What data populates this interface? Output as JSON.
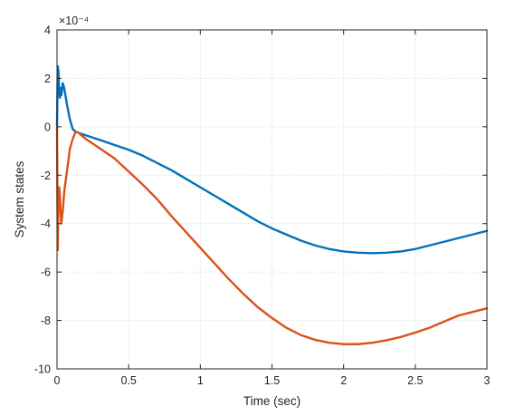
{
  "chart_data": {
    "type": "line",
    "title": "",
    "xlabel": "Time (sec)",
    "ylabel": "System states",
    "xlim": [
      0,
      3
    ],
    "ylim": [
      -10,
      4
    ],
    "y_exponent_label": "×10⁻⁴",
    "xticks": [
      0,
      0.5,
      1,
      1.5,
      2,
      2.5,
      3
    ],
    "xtick_labels": [
      "0",
      "0.5",
      "1",
      "1.5",
      "2",
      "2.5",
      "3"
    ],
    "yticks": [
      -10,
      -8,
      -6,
      -4,
      -2,
      0,
      2,
      4
    ],
    "ytick_labels": [
      "-10",
      "-8",
      "-6",
      "-4",
      "-2",
      "0",
      "2",
      "4"
    ],
    "grid": true,
    "legend": "none",
    "series": [
      {
        "color": "#0072BD",
        "x": [
          0,
          0.005,
          0.01,
          0.015,
          0.02,
          0.025,
          0.03,
          0.04,
          0.05,
          0.07,
          0.09,
          0.11,
          0.13,
          0.15,
          0.2,
          0.3,
          0.4,
          0.5,
          0.6,
          0.7,
          0.8,
          0.9,
          1.0,
          1.1,
          1.2,
          1.3,
          1.4,
          1.5,
          1.6,
          1.7,
          1.8,
          1.9,
          2.0,
          2.1,
          2.2,
          2.3,
          2.4,
          2.5,
          2.6,
          2.7,
          2.8,
          2.9,
          3.0
        ],
        "y": [
          0,
          2.5,
          2.3,
          1.5,
          1.2,
          1.6,
          1.3,
          1.8,
          1.6,
          0.9,
          0.3,
          -0.1,
          -0.2,
          -0.25,
          -0.35,
          -0.55,
          -0.75,
          -0.95,
          -1.2,
          -1.5,
          -1.8,
          -2.15,
          -2.5,
          -2.85,
          -3.2,
          -3.55,
          -3.9,
          -4.2,
          -4.45,
          -4.7,
          -4.9,
          -5.05,
          -5.15,
          -5.2,
          -5.22,
          -5.2,
          -5.15,
          -5.05,
          -4.9,
          -4.75,
          -4.6,
          -4.45,
          -4.3
        ]
      },
      {
        "color": "#D95319",
        "x": [
          0,
          0.005,
          0.01,
          0.015,
          0.02,
          0.025,
          0.03,
          0.04,
          0.05,
          0.07,
          0.09,
          0.11,
          0.13,
          0.15,
          0.2,
          0.3,
          0.4,
          0.5,
          0.6,
          0.7,
          0.8,
          0.9,
          1.0,
          1.1,
          1.2,
          1.3,
          1.4,
          1.5,
          1.6,
          1.7,
          1.8,
          1.9,
          2.0,
          2.1,
          2.2,
          2.3,
          2.4,
          2.5,
          2.6,
          2.7,
          2.8,
          2.9,
          3.0
        ],
        "y": [
          0,
          -5.1,
          -3.2,
          -2.5,
          -2.8,
          -3.5,
          -4.0,
          -3.5,
          -2.7,
          -1.8,
          -0.9,
          -0.5,
          -0.2,
          -0.25,
          -0.5,
          -0.9,
          -1.3,
          -1.85,
          -2.4,
          -3.0,
          -3.7,
          -4.35,
          -5.0,
          -5.65,
          -6.3,
          -6.9,
          -7.45,
          -7.9,
          -8.3,
          -8.6,
          -8.8,
          -8.92,
          -8.98,
          -8.98,
          -8.92,
          -8.82,
          -8.68,
          -8.5,
          -8.3,
          -8.05,
          -7.8,
          -7.65,
          -7.5
        ]
      }
    ]
  }
}
